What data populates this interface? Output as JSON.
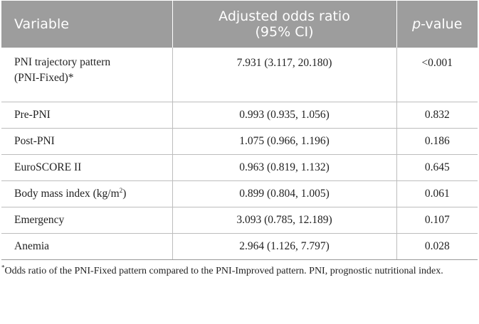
{
  "header": {
    "col1": "Variable",
    "col2_line1": "Adjusted odds ratio",
    "col2_line2": "(95% CI)",
    "col3_italic": "p",
    "col3_rest": "-value"
  },
  "rows": [
    {
      "variable_line1": "PNI trajectory pattern",
      "variable_line2": "(PNI-Fixed)*",
      "or": "7.931 (3.117, 20.180)",
      "p": "<0.001"
    },
    {
      "variable": "Pre-PNI",
      "or": "0.993 (0.935, 1.056)",
      "p": "0.832"
    },
    {
      "variable": "Post-PNI",
      "or": "1.075 (0.966, 1.196)",
      "p": "0.186"
    },
    {
      "variable": "EuroSCORE II",
      "or": "0.963 (0.819, 1.132)",
      "p": "0.645"
    },
    {
      "variable": "Body mass index (kg/m",
      "variable_sup": "2",
      "variable_end": ")",
      "or": "0.899 (0.804, 1.005)",
      "p": "0.061"
    },
    {
      "variable": "Emergency",
      "or": "3.093 (0.785, 12.189)",
      "p": "0.107"
    },
    {
      "variable": "Anemia",
      "or": "2.964 (1.126, 7.797)",
      "p": "0.028"
    }
  ],
  "footnote": {
    "marker": "*",
    "text": "Odds ratio of the PNI-Fixed pattern compared to the PNI-Improved pattern. PNI, prognostic nutritional index."
  },
  "colors": {
    "header_bg": "#9d9d9d",
    "header_text": "#ffffff",
    "rule": "#bdbdbd"
  }
}
